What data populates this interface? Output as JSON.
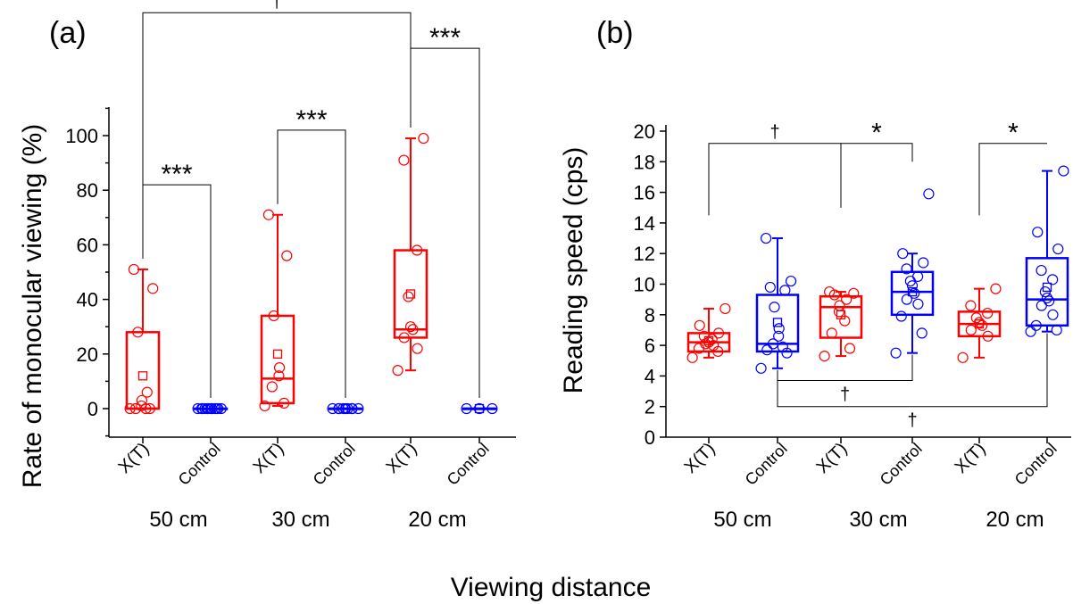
{
  "figure": {
    "xlabel": "Viewing distance"
  },
  "colors": {
    "xt": "#ff0000",
    "control": "#0000ff"
  },
  "chart_data": [
    {
      "panel_label": "(a)",
      "type": "box",
      "ylabel": "Rate of monocular viewing (%)",
      "ylim": [
        -10,
        110
      ],
      "yticks": [
        0,
        20,
        40,
        60,
        80,
        100
      ],
      "categories": [
        "X(T)",
        "Control",
        "X(T)",
        "Control",
        "X(T)",
        "Control"
      ],
      "groups": [
        "50 cm",
        "30 cm",
        "20 cm"
      ],
      "boxes": [
        {
          "group": "xt",
          "q1": 0,
          "median": 0,
          "q3": 28,
          "min": 0,
          "max": 51,
          "mean": 12,
          "points": [
            0,
            0,
            0,
            0,
            1,
            3,
            6,
            28,
            44,
            51
          ]
        },
        {
          "group": "control",
          "q1": 0,
          "median": 0,
          "q3": 0,
          "min": 0,
          "max": 0,
          "mean": 0,
          "points": [
            0,
            0,
            0,
            0,
            0,
            0,
            0,
            0,
            0,
            0,
            0,
            0
          ]
        },
        {
          "group": "xt",
          "q1": 2,
          "median": 11,
          "q3": 34,
          "min": 1,
          "max": 71,
          "mean": 20,
          "points": [
            1,
            2,
            8,
            12,
            15,
            34,
            56,
            71
          ]
        },
        {
          "group": "control",
          "q1": 0,
          "median": 0,
          "q3": 0,
          "min": 0,
          "max": 0,
          "mean": 0,
          "points": [
            0,
            0,
            0,
            0,
            0,
            0,
            0,
            0,
            0
          ]
        },
        {
          "group": "xt",
          "q1": 26,
          "median": 29,
          "q3": 58,
          "min": 14,
          "max": 99,
          "mean": 42,
          "points": [
            14,
            22,
            26,
            29,
            30,
            41,
            58,
            91,
            99
          ]
        },
        {
          "group": "control",
          "q1": 0,
          "median": 0,
          "q3": 0,
          "min": 0,
          "max": 0,
          "mean": 0,
          "points": [
            0,
            0,
            0
          ]
        }
      ],
      "significance": [
        {
          "from": 0,
          "to": 1,
          "label": "***",
          "level": 82
        },
        {
          "from": 2,
          "to": 3,
          "label": "***",
          "level": 102
        },
        {
          "from": 4,
          "to": 5,
          "label": "***",
          "level": 132
        },
        {
          "from": 0,
          "to": 4,
          "label": "†",
          "level": 145
        }
      ]
    },
    {
      "panel_label": "(b)",
      "type": "box",
      "ylabel": "Reading speed (cps)",
      "ylim": [
        0,
        20
      ],
      "yticks": [
        0,
        2,
        4,
        6,
        8,
        10,
        12,
        14,
        16,
        18,
        20
      ],
      "categories": [
        "X(T)",
        "Control",
        "X(T)",
        "Control",
        "X(T)",
        "Control"
      ],
      "groups": [
        "50 cm",
        "30 cm",
        "20 cm"
      ],
      "boxes": [
        {
          "group": "xt",
          "q1": 5.6,
          "median": 6.2,
          "q3": 6.8,
          "min": 5.2,
          "max": 8.4,
          "mean": 6.3,
          "points": [
            5.2,
            5.6,
            5.8,
            6.0,
            6.1,
            6.2,
            6.4,
            6.6,
            6.8,
            7.3,
            8.4
          ]
        },
        {
          "group": "control",
          "q1": 5.6,
          "median": 6.1,
          "q3": 9.3,
          "min": 4.5,
          "max": 13.0,
          "mean": 7.5,
          "points": [
            4.5,
            5.5,
            5.7,
            5.9,
            6.1,
            6.6,
            7.1,
            8.5,
            9.6,
            9.8,
            10.2,
            13.0
          ]
        },
        {
          "group": "xt",
          "q1": 6.5,
          "median": 8.5,
          "q3": 9.2,
          "min": 5.3,
          "max": 9.5,
          "mean": 8.0,
          "points": [
            5.3,
            5.8,
            6.8,
            7.6,
            8.2,
            8.6,
            9.0,
            9.3,
            9.4,
            9.5
          ]
        },
        {
          "group": "control",
          "q1": 8.0,
          "median": 9.5,
          "q3": 10.8,
          "min": 5.5,
          "max": 12.0,
          "mean": 9.5,
          "points": [
            5.5,
            6.8,
            7.9,
            8.7,
            9.0,
            9.4,
            9.9,
            10.2,
            10.5,
            11.0,
            11.4,
            12.0,
            15.9
          ]
        },
        {
          "group": "xt",
          "q1": 6.6,
          "median": 7.4,
          "q3": 8.2,
          "min": 5.2,
          "max": 9.7,
          "mean": 7.4,
          "points": [
            5.2,
            6.6,
            7.0,
            7.3,
            7.5,
            7.8,
            8.1,
            8.6,
            9.7
          ]
        },
        {
          "group": "control",
          "q1": 7.3,
          "median": 9.0,
          "q3": 11.7,
          "min": 6.9,
          "max": 17.4,
          "mean": 9.8,
          "points": [
            6.9,
            7.0,
            7.3,
            8.0,
            8.6,
            8.9,
            9.1,
            9.5,
            10.3,
            10.9,
            12.3,
            13.4,
            17.4
          ]
        }
      ],
      "significance": [
        {
          "from": 2,
          "to": 3,
          "label": "*",
          "level": 19.2
        },
        {
          "from": 0,
          "to": 2,
          "label": "†",
          "level": 19.2
        },
        {
          "from": 4,
          "to": 5,
          "label": "*",
          "level": 19.2
        },
        {
          "from": 1,
          "to": 3,
          "label": "†",
          "level": 3.7,
          "below": true
        },
        {
          "from": 1,
          "to": 5,
          "label": "†",
          "level": 2.0,
          "below": true
        }
      ]
    }
  ]
}
